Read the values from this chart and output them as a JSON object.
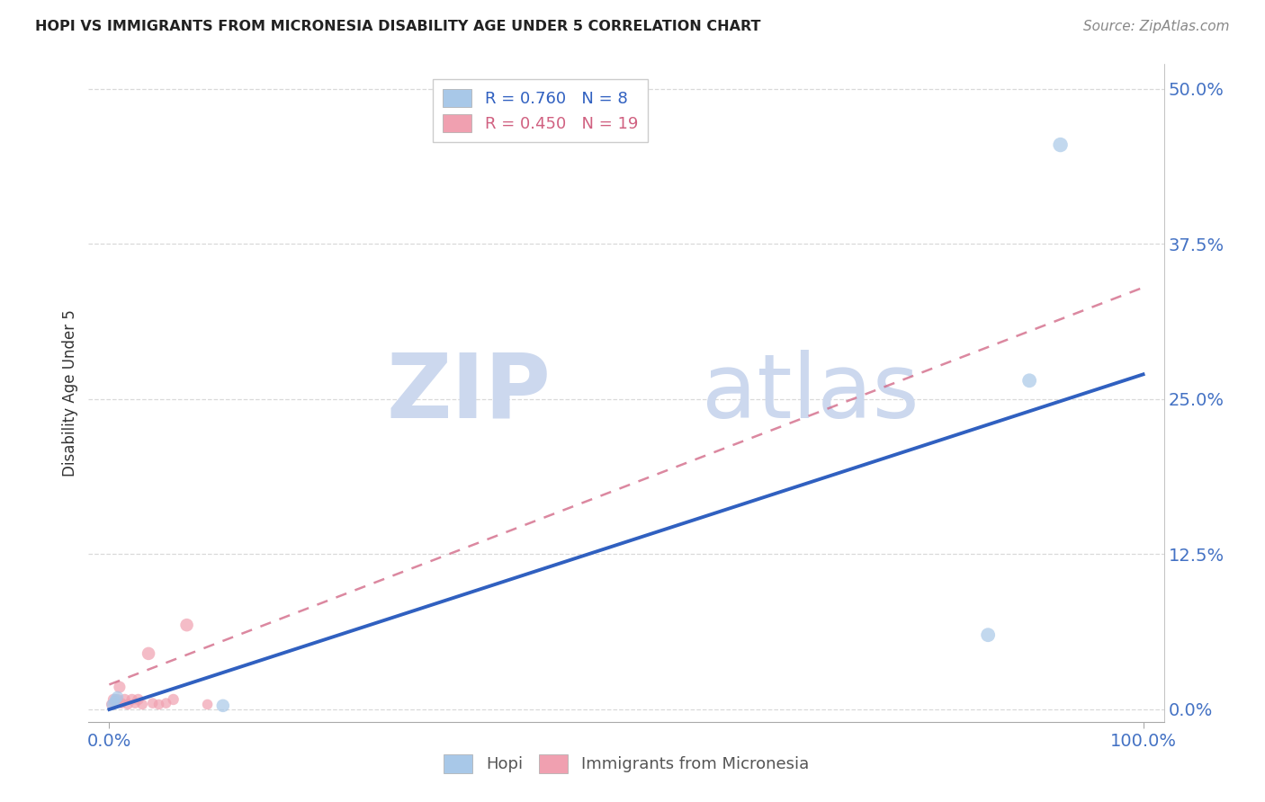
{
  "title": "HOPI VS IMMIGRANTS FROM MICRONESIA DISABILITY AGE UNDER 5 CORRELATION CHART",
  "source": "Source: ZipAtlas.com",
  "ylabel": "Disability Age Under 5",
  "xlim": [
    -0.02,
    1.02
  ],
  "ylim": [
    -0.01,
    0.52
  ],
  "yticks": [
    0.0,
    0.125,
    0.25,
    0.375,
    0.5
  ],
  "ytick_labels": [
    "0.0%",
    "12.5%",
    "25.0%",
    "37.5%",
    "50.0%"
  ],
  "xticks": [
    0.0,
    1.0
  ],
  "xtick_labels": [
    "0.0%",
    "100.0%"
  ],
  "background_color": "#ffffff",
  "grid_color": "#d0d0d0",
  "hopi_color": "#a8c8e8",
  "micronesia_color": "#f0a0b0",
  "hopi_line_color": "#3060c0",
  "micronesia_line_color": "#d06080",
  "axis_color": "#4472c4",
  "hopi_R": 0.76,
  "hopi_N": 8,
  "micronesia_R": 0.45,
  "micronesia_N": 19,
  "legend_label_hopi": "Hopi",
  "legend_label_micronesia": "Immigrants from Micronesia",
  "watermark_zip": "ZIP",
  "watermark_atlas": "atlas",
  "hopi_x": [
    0.003,
    0.005,
    0.006,
    0.008,
    0.11,
    0.85,
    0.89,
    0.92
  ],
  "hopi_y": [
    0.004,
    0.006,
    0.008,
    0.01,
    0.003,
    0.06,
    0.265,
    0.455
  ],
  "micronesia_x": [
    0.002,
    0.004,
    0.006,
    0.008,
    0.01,
    0.012,
    0.015,
    0.018,
    0.022,
    0.025,
    0.028,
    0.032,
    0.038,
    0.042,
    0.048,
    0.055,
    0.062,
    0.075,
    0.095
  ],
  "micronesia_y": [
    0.004,
    0.008,
    0.005,
    0.008,
    0.018,
    0.005,
    0.008,
    0.004,
    0.008,
    0.005,
    0.008,
    0.004,
    0.045,
    0.005,
    0.004,
    0.005,
    0.008,
    0.068,
    0.004
  ],
  "hopi_sizes": [
    80,
    80,
    80,
    90,
    110,
    130,
    130,
    140
  ],
  "micronesia_sizes": [
    70,
    80,
    70,
    80,
    90,
    70,
    80,
    70,
    80,
    70,
    80,
    70,
    110,
    70,
    70,
    70,
    80,
    110,
    70
  ],
  "hopi_line_x": [
    0.0,
    1.0
  ],
  "hopi_line_y": [
    0.0,
    0.27
  ],
  "micronesia_line_x": [
    0.0,
    1.0
  ],
  "micronesia_line_y": [
    0.02,
    0.34
  ]
}
